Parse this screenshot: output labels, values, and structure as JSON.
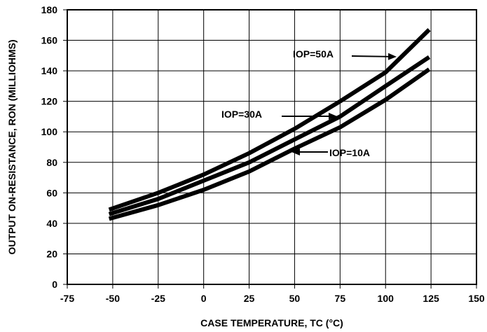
{
  "chart_data": {
    "type": "line",
    "xlabel": "CASE TEMPERATURE, TC (°C)",
    "ylabel": "OUTPUT ON-RESISTANCE,  RON (MILLIOHMS)",
    "xlim": [
      -75,
      150
    ],
    "ylim": [
      0,
      180
    ],
    "x_ticks": [
      "-75",
      "-50",
      "-25",
      "0",
      "25",
      "50",
      "75",
      "100",
      "125",
      "150"
    ],
    "y_ticks": [
      "0",
      "20",
      "40",
      "60",
      "80",
      "100",
      "120",
      "140",
      "160",
      "180"
    ],
    "grid": true,
    "series": [
      {
        "name": "IOP=50A",
        "x": [
          -52,
          -25,
          0,
          25,
          50,
          75,
          100,
          124
        ],
        "y": [
          49,
          60,
          72,
          86,
          102,
          120,
          139,
          167
        ]
      },
      {
        "name": "IOP=30A",
        "x": [
          -52,
          -25,
          0,
          25,
          50,
          75,
          100,
          124
        ],
        "y": [
          46,
          56,
          68,
          80,
          95,
          110,
          130,
          149
        ]
      },
      {
        "name": "IOP=10A",
        "x": [
          -52,
          -25,
          0,
          25,
          50,
          75,
          100,
          124
        ],
        "y": [
          43,
          52,
          62,
          74,
          89,
          103,
          121,
          141
        ]
      }
    ],
    "annotations": [
      {
        "text": "IOP=50A",
        "series": "IOP=50A"
      },
      {
        "text": "IOP=30A",
        "series": "IOP=30A"
      },
      {
        "text": "IOP=10A",
        "series": "IOP=10A"
      }
    ]
  }
}
